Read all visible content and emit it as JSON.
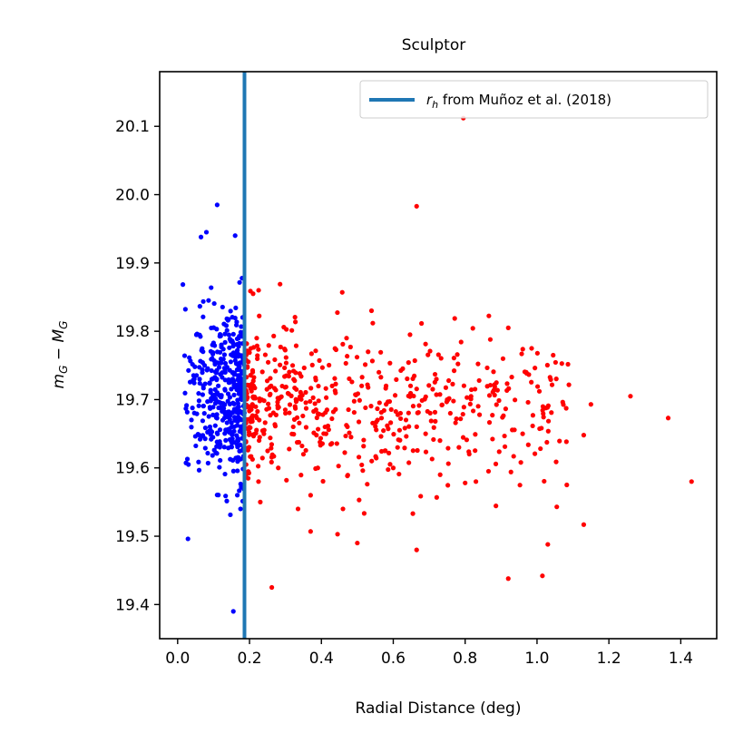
{
  "chart_data": {
    "type": "scatter",
    "title": "Sculptor",
    "xlabel": "Radial Distance (deg)",
    "ylabel_main": "m",
    "ylabel_sub1": "G",
    "ylabel_minus": " − ",
    "ylabel_main2": "M",
    "ylabel_sub2": "G",
    "xlim": [
      -0.05,
      1.5
    ],
    "ylim": [
      19.35,
      20.18
    ],
    "xticks": [
      0.0,
      0.2,
      0.4,
      0.6,
      0.8,
      1.0,
      1.2,
      1.4
    ],
    "xtick_labels": [
      "0.0",
      "0.2",
      "0.4",
      "0.6",
      "0.8",
      "1.0",
      "1.2",
      "1.4"
    ],
    "yticks": [
      19.4,
      19.5,
      19.6,
      19.7,
      19.8,
      19.9,
      20.0,
      20.1
    ],
    "ytick_labels": [
      "19.4",
      "19.5",
      "19.6",
      "19.7",
      "19.8",
      "19.9",
      "20.0",
      "20.1"
    ],
    "vline": {
      "x": 0.186,
      "color": "#1f77b4"
    },
    "legend": {
      "placement": "top-right",
      "label_italic": "r",
      "label_sub": "h",
      "label_rest": " from Muñoz et al. (2018)"
    },
    "series": [
      {
        "color": "#0000ff",
        "inner": true
      },
      {
        "color": "#ff0000",
        "inner": false
      }
    ],
    "outer_points": [
      [
        0.795,
        20.112
      ],
      [
        0.665,
        19.983
      ],
      [
        0.458,
        19.857
      ],
      [
        0.285,
        19.869
      ],
      [
        0.21,
        19.855
      ],
      [
        0.262,
        19.425
      ],
      [
        0.92,
        19.438
      ],
      [
        1.015,
        19.442
      ],
      [
        0.665,
        19.48
      ],
      [
        0.5,
        19.49
      ],
      [
        0.445,
        19.503
      ],
      [
        0.37,
        19.507
      ],
      [
        1.03,
        19.488
      ],
      [
        1.13,
        19.517
      ],
      [
        1.055,
        19.543
      ],
      [
        1.43,
        19.58
      ],
      [
        1.365,
        19.673
      ],
      [
        1.26,
        19.705
      ],
      [
        1.15,
        19.693
      ],
      [
        1.13,
        19.648
      ],
      [
        1.04,
        19.681
      ],
      [
        0.96,
        19.65
      ],
      [
        0.935,
        19.617
      ],
      [
        0.92,
        19.805
      ],
      [
        0.985,
        19.775
      ],
      [
        0.97,
        19.74
      ],
      [
        1.045,
        19.765
      ],
      [
        0.83,
        19.58
      ],
      [
        0.8,
        19.578
      ],
      [
        0.805,
        19.703
      ],
      [
        0.87,
        19.788
      ],
      [
        0.955,
        19.608
      ],
      [
        0.54,
        19.61
      ],
      [
        0.6,
        19.6
      ],
      [
        0.46,
        19.54
      ],
      [
        0.37,
        19.56
      ],
      [
        0.335,
        19.54
      ],
      [
        0.23,
        19.55
      ],
      [
        0.505,
        19.553
      ],
      [
        0.56,
        19.74
      ],
      [
        0.66,
        19.757
      ],
      [
        0.72,
        19.73
      ],
      [
        0.73,
        19.64
      ],
      [
        0.75,
        19.7
      ],
      [
        0.69,
        19.65
      ],
      [
        0.62,
        19.68
      ],
      [
        0.58,
        19.72
      ],
      [
        0.53,
        19.77
      ],
      [
        0.47,
        19.79
      ],
      [
        0.43,
        19.72
      ],
      [
        0.41,
        19.66
      ],
      [
        0.39,
        19.6
      ],
      [
        0.35,
        19.62
      ],
      [
        0.32,
        19.75
      ],
      [
        0.3,
        19.68
      ],
      [
        0.28,
        19.6
      ],
      [
        0.26,
        19.72
      ],
      [
        0.24,
        19.65
      ],
      [
        0.22,
        19.79
      ],
      [
        0.225,
        19.58
      ]
    ]
  }
}
